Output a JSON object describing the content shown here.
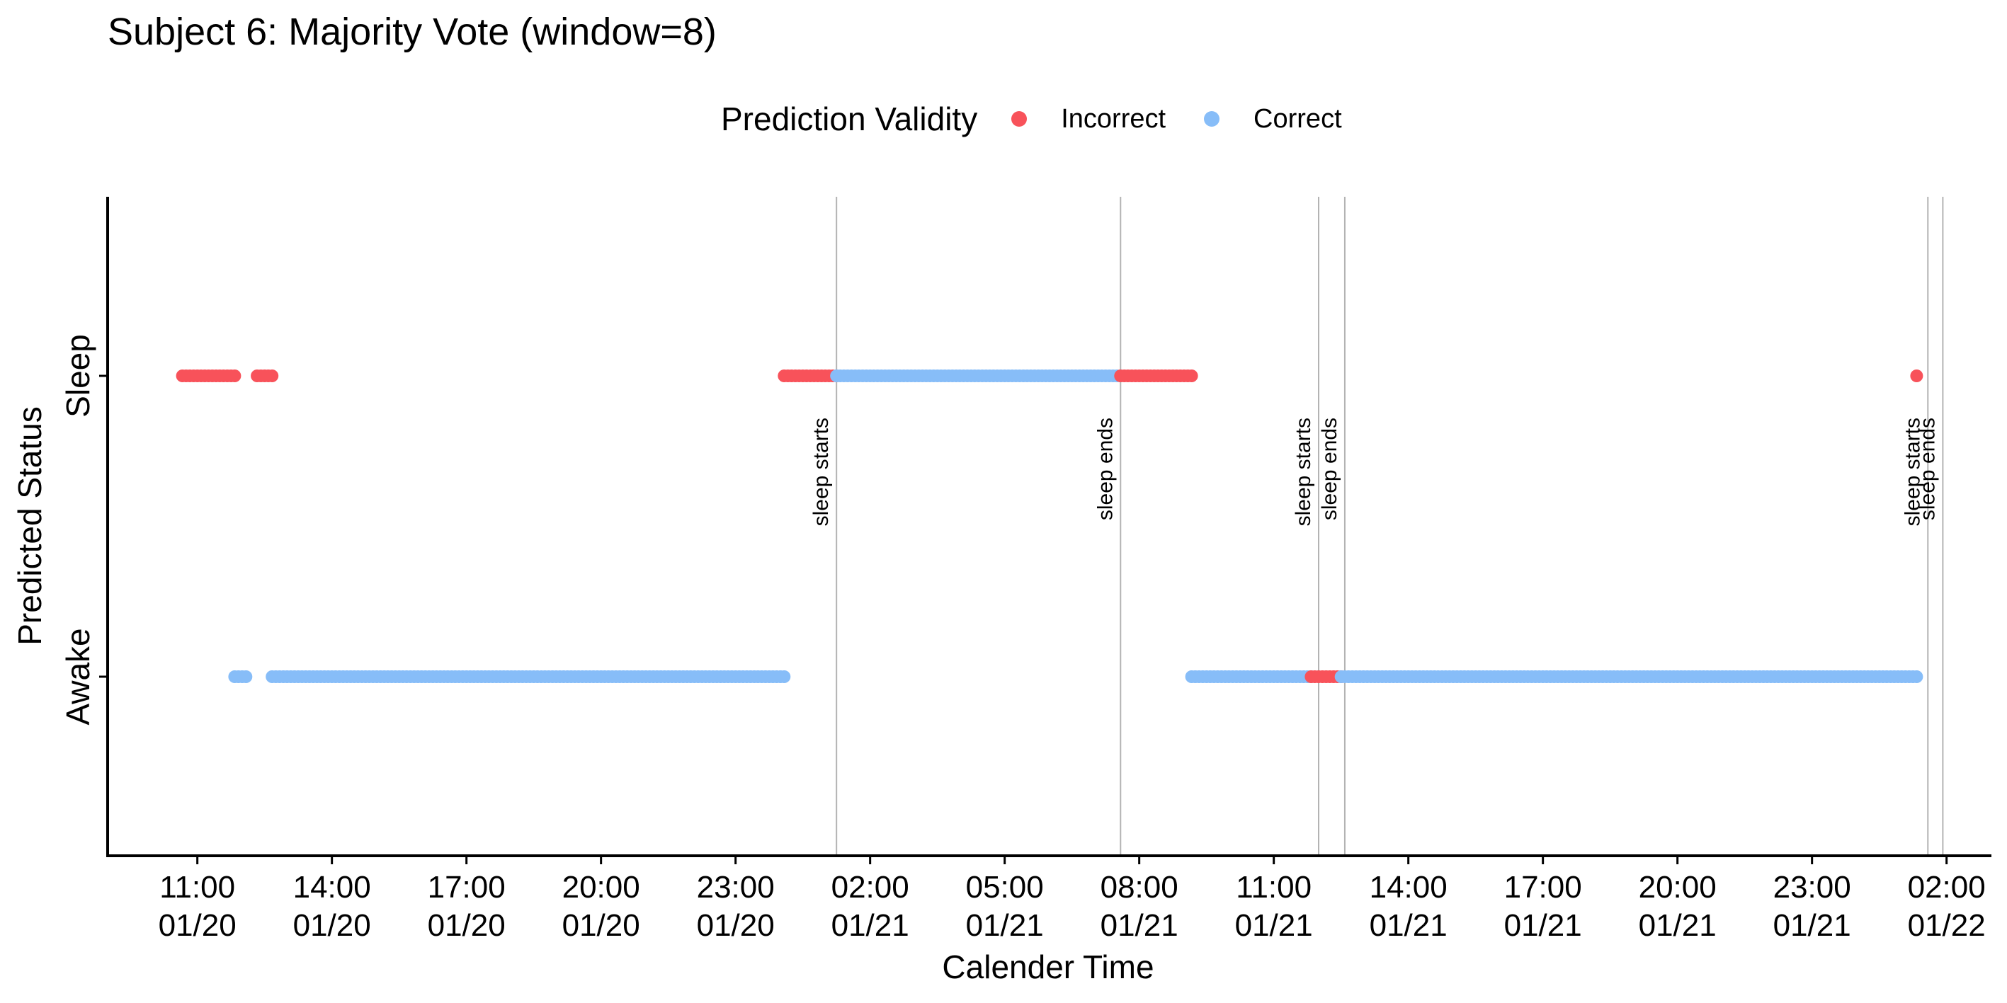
{
  "chart_data": {
    "type": "scatter",
    "title": "Subject 6: Majority Vote (window=8)",
    "xlabel": "Calender Time",
    "ylabel": "Predicted Status",
    "y_categories": [
      "Awake",
      "Sleep"
    ],
    "x_ticks": [
      {
        "time": "2000-01-20T11:00",
        "label": "11:00",
        "date": "01/20"
      },
      {
        "time": "2000-01-20T14:00",
        "label": "14:00",
        "date": "01/20"
      },
      {
        "time": "2000-01-20T17:00",
        "label": "17:00",
        "date": "01/20"
      },
      {
        "time": "2000-01-20T20:00",
        "label": "20:00",
        "date": "01/20"
      },
      {
        "time": "2000-01-20T23:00",
        "label": "23:00",
        "date": "01/20"
      },
      {
        "time": "2000-01-21T02:00",
        "label": "02:00",
        "date": "01/21"
      },
      {
        "time": "2000-01-21T05:00",
        "label": "05:00",
        "date": "01/21"
      },
      {
        "time": "2000-01-21T08:00",
        "label": "08:00",
        "date": "01/21"
      },
      {
        "time": "2000-01-21T11:00",
        "label": "11:00",
        "date": "01/21"
      },
      {
        "time": "2000-01-21T14:00",
        "label": "14:00",
        "date": "01/21"
      },
      {
        "time": "2000-01-21T17:00",
        "label": "17:00",
        "date": "01/21"
      },
      {
        "time": "2000-01-21T20:00",
        "label": "20:00",
        "date": "01/21"
      },
      {
        "time": "2000-01-21T23:00",
        "label": "23:00",
        "date": "01/21"
      },
      {
        "time": "2000-01-22T02:00",
        "label": "02:00",
        "date": "01/22"
      }
    ],
    "xlim": [
      "2000-01-20T09:00",
      "2000-01-22T03:00"
    ],
    "legend": {
      "title": "Prediction Validity",
      "position": "top",
      "entries": [
        {
          "name": "Incorrect",
          "color": "#F8525A"
        },
        {
          "name": "Correct",
          "color": "#87BDF8"
        }
      ]
    },
    "series": [
      {
        "name": "Incorrect",
        "status": "Sleep",
        "from": "2000-01-20T10:40",
        "to": "2000-01-20T11:50"
      },
      {
        "name": "Incorrect",
        "status": "Sleep",
        "from": "2000-01-20T12:20",
        "to": "2000-01-20T12:40"
      },
      {
        "name": "Correct",
        "status": "Awake",
        "from": "2000-01-20T11:50",
        "to": "2000-01-20T12:05"
      },
      {
        "name": "Correct",
        "status": "Awake",
        "from": "2000-01-20T12:40",
        "to": "2000-01-21T00:05"
      },
      {
        "name": "Incorrect",
        "status": "Sleep",
        "from": "2000-01-21T00:05",
        "to": "2000-01-21T01:15"
      },
      {
        "name": "Correct",
        "status": "Sleep",
        "from": "2000-01-21T01:15",
        "to": "2000-01-21T07:35"
      },
      {
        "name": "Incorrect",
        "status": "Sleep",
        "from": "2000-01-21T07:35",
        "to": "2000-01-21T09:10"
      },
      {
        "name": "Correct",
        "status": "Awake",
        "from": "2000-01-21T09:10",
        "to": "2000-01-21T11:50"
      },
      {
        "name": "Incorrect",
        "status": "Awake",
        "from": "2000-01-21T11:50",
        "to": "2000-01-21T12:30"
      },
      {
        "name": "Correct",
        "status": "Awake",
        "from": "2000-01-21T12:30",
        "to": "2000-01-22T01:20"
      },
      {
        "name": "Incorrect",
        "status": "Sleep",
        "from": "2000-01-22T01:20",
        "to": "2000-01-22T01:20"
      }
    ],
    "point_interval_minutes": 5,
    "annotations": [
      {
        "time": "2000-01-21T01:15",
        "text": "sleep starts"
      },
      {
        "time": "2000-01-21T07:35",
        "text": "sleep ends"
      },
      {
        "time": "2000-01-21T12:00",
        "text": "sleep starts"
      },
      {
        "time": "2000-01-21T12:35",
        "text": "sleep ends"
      },
      {
        "time": "2000-01-22T01:35",
        "text": "sleep starts"
      },
      {
        "time": "2000-01-22T01:55",
        "text": "sleep ends"
      }
    ],
    "grid": false
  }
}
